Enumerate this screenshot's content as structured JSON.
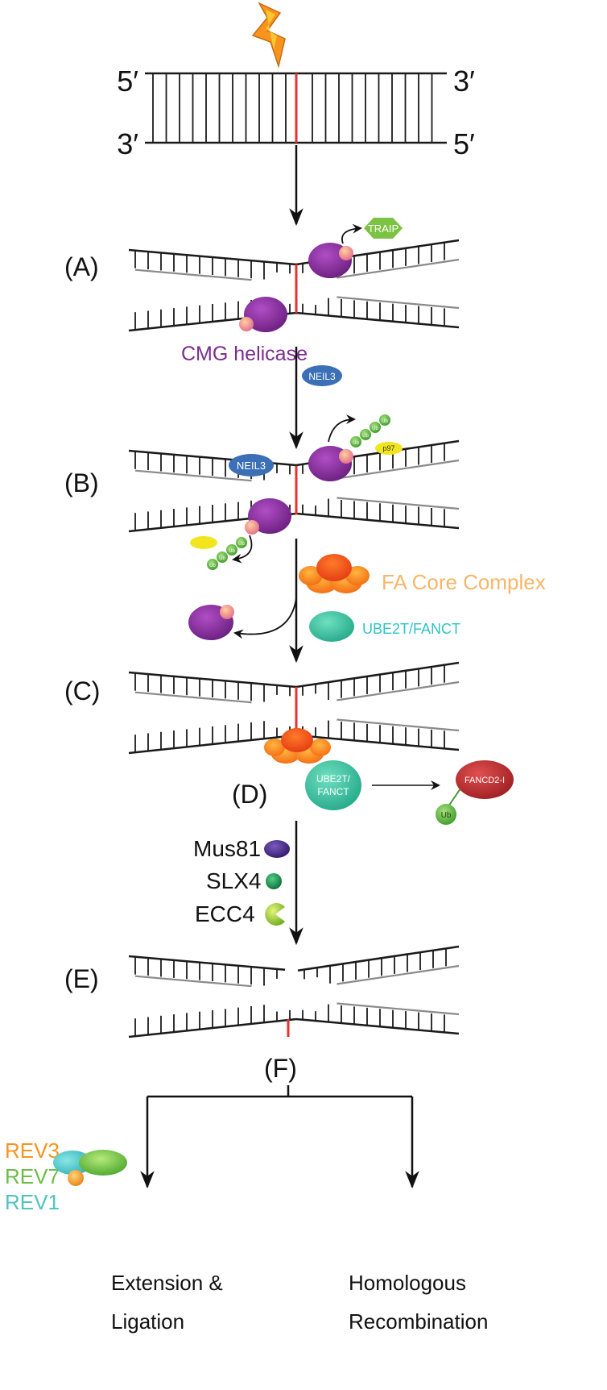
{
  "colors": {
    "strand": "#1a1a1a",
    "new_strand": "#8a8a8a",
    "crosslink": "#e8312f",
    "cmg": "#7b2d8e",
    "cmg_dot": "#f08a8a",
    "traip": "#7cc243",
    "neil3": "#3b6fb6",
    "ub": "#6cbd45",
    "p97": "#f2e51d",
    "fa_core": "#f7941d",
    "fa_label": "#f7b66a",
    "ube2t": "#3fbf9f",
    "ube2t_label": "#2ec4c4",
    "fancd2": "#b8272d",
    "mus81": "#4b2a8c",
    "slx4": "#1d8a4a",
    "ecc4": "#a6cf3a",
    "rev3": "#f7941d",
    "rev7": "#6cbd45",
    "rev1": "#4ec3c3"
  },
  "strand_ends": {
    "top_left": "5′",
    "top_right": "3′",
    "bottom_left": "3′",
    "bottom_right": "5′"
  },
  "damage_icon": "lightning-bolt-icon",
  "steps": {
    "A": "(A)",
    "B": "(B)",
    "C": "(C)",
    "D": "(D)",
    "E": "(E)",
    "F": "(F)"
  },
  "labels": {
    "cmg": "CMG helicase",
    "traip": "TRAIP",
    "neil3": "NEIL3",
    "ub": "Ub",
    "p97": "p97",
    "fa_core": "FA Core Complex",
    "ube2t": "UBE2T/FANCT",
    "ube2t_line1": "UBE2T/",
    "ube2t_line2": "FANCT",
    "fancd2": "FANCD2-I",
    "mus81": "Mus81",
    "slx4": "SLX4",
    "ecc4": "ECC4",
    "rev3": "REV3",
    "rev7": "REV7",
    "rev1": "REV1",
    "extension_line1": "Extension &",
    "extension_line2": "Ligation",
    "hr_line1": "Homologous",
    "hr_line2": "Recombination"
  }
}
